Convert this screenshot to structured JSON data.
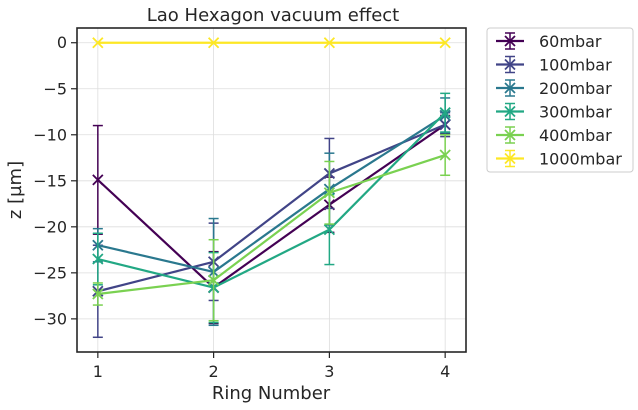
{
  "chart_data": {
    "type": "line",
    "title": "Lao Hexagon vacuum effect",
    "xlabel": "Ring Number",
    "ylabel": "z [µm]",
    "x": [
      1,
      2,
      3,
      4
    ],
    "xticks": [
      1,
      2,
      3,
      4
    ],
    "xlim": [
      0.82,
      4.18
    ],
    "yticks": [
      0,
      -5,
      -10,
      -15,
      -20,
      -25,
      -30
    ],
    "ytick_labels": [
      "0",
      "−5",
      "−10",
      "−15",
      "−20",
      "−25",
      "−30"
    ],
    "ylim": [
      -33.6,
      1.6
    ],
    "grid": true,
    "legend_position": "outside-right-top",
    "marker": "x",
    "series": [
      {
        "name": "60mbar",
        "color": "#440154",
        "values": [
          -14.9,
          -26.6,
          -17.6,
          -8.9
        ],
        "errors": [
          5.9,
          3.9,
          3.0,
          1.0
        ]
      },
      {
        "name": "100mbar",
        "color": "#414487",
        "values": [
          -27.0,
          -23.8,
          -14.2,
          -8.9
        ],
        "errors": [
          5.0,
          4.2,
          3.8,
          1.3
        ]
      },
      {
        "name": "200mbar",
        "color": "#2a788e",
        "values": [
          -22.0,
          -24.9,
          -15.9,
          -7.9
        ],
        "errors": [
          1.8,
          5.8,
          3.9,
          1.9
        ]
      },
      {
        "name": "300mbar",
        "color": "#22a884",
        "values": [
          -23.5,
          -26.6,
          -20.3,
          -7.6
        ],
        "errors": [
          2.8,
          3.8,
          3.8,
          2.1
        ]
      },
      {
        "name": "400mbar",
        "color": "#7ad151",
        "values": [
          -27.3,
          -25.8,
          -16.3,
          -12.2
        ],
        "errors": [
          1.2,
          4.4,
          3.4,
          2.2
        ]
      },
      {
        "name": "1000mbar",
        "color": "#fde725",
        "values": [
          0.0,
          0.0,
          0.0,
          0.0
        ],
        "errors": [
          0.0,
          0.0,
          0.0,
          0.0
        ]
      }
    ]
  }
}
